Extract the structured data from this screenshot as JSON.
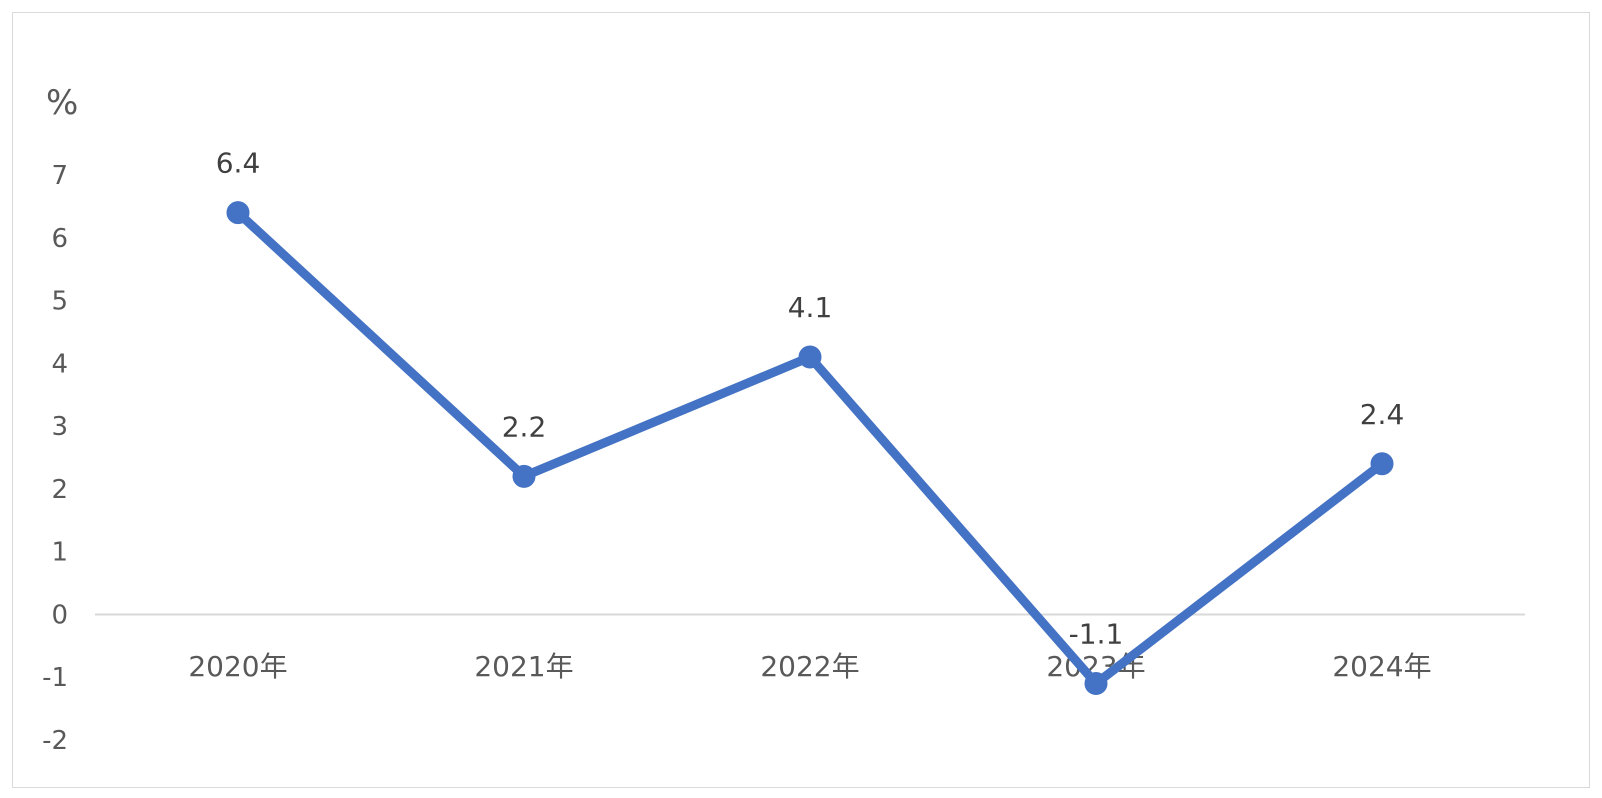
{
  "chart_data": {
    "type": "line",
    "categories": [
      "2020年",
      "2021年",
      "2022年",
      "2023年",
      "2024年"
    ],
    "series": [
      {
        "values": [
          6.4,
          2.2,
          4.1,
          -1.1,
          2.4
        ],
        "color": "#4472c4"
      }
    ],
    "data_labels": [
      "6.4",
      "2.2",
      "4.1",
      "-1.1",
      "2.4"
    ],
    "y_unit": "%",
    "ylim": [
      -2,
      7
    ],
    "y_ticks": [
      7,
      6,
      5,
      4,
      3,
      2,
      1,
      0,
      -1,
      -2
    ],
    "y_tick_labels": [
      "7",
      "6",
      "5",
      "4",
      "3",
      "2",
      "1",
      "0",
      "-1",
      "-2"
    ],
    "grid": false,
    "zero_line_color": "#d9d9d9",
    "legend": "none"
  }
}
